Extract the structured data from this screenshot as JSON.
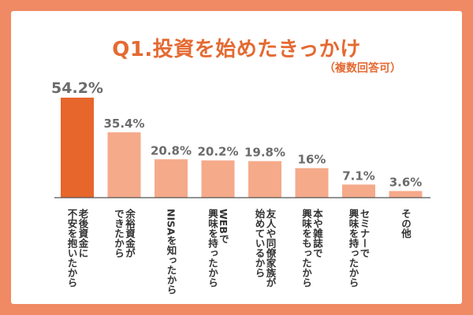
{
  "chart_data": {
    "type": "bar",
    "title": "Q1.投資を始めたきっかけ",
    "subtitle": "（複数回答可）",
    "categories": [
      [
        "老後資金に",
        "不安を抱いたから"
      ],
      [
        "余裕資金が",
        "できたから"
      ],
      [
        "NISAを知ったから"
      ],
      [
        "WEBで",
        "興味を持ったから"
      ],
      [
        "友人や同僚家族が",
        "始めているから"
      ],
      [
        "本や雑誌で",
        "興味をもったから"
      ],
      [
        "セミナーで",
        "興味を持ったから"
      ],
      [
        "その他"
      ]
    ],
    "values": [
      54.2,
      35.4,
      20.8,
      20.2,
      19.8,
      16,
      7.1,
      3.6
    ],
    "value_labels": [
      "54.2%",
      "35.4%",
      "20.8%",
      "20.2%",
      "19.8%",
      "16%",
      "7.1%",
      "3.6%"
    ],
    "ylim": [
      0,
      54.2
    ],
    "grid": false,
    "colors": {
      "background": "#f08a64",
      "highlight_bar": "#e6662c",
      "bar": "#f5aa8a",
      "title": "#e46a32",
      "value_label": "#6b6b6b",
      "baseline": "#555555"
    }
  }
}
